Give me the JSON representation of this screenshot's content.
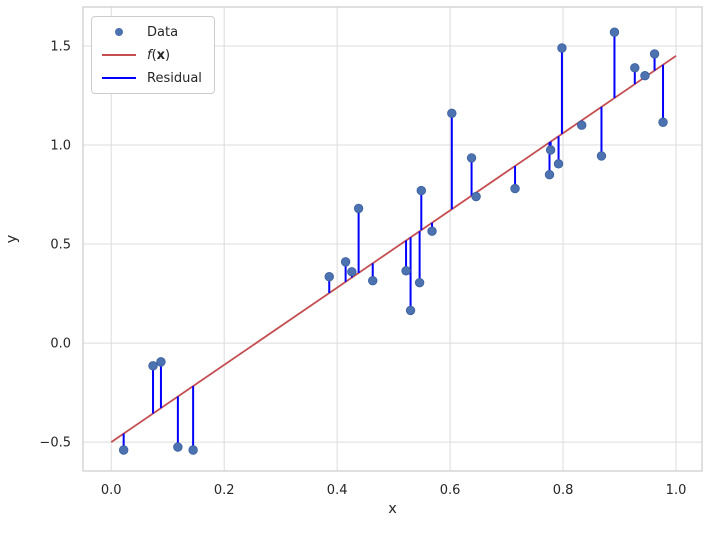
{
  "figure": {
    "background": "#ffffff"
  },
  "chart_data": {
    "type": "scatter",
    "title": "",
    "xlabel": "x",
    "ylabel": "y",
    "xlim": [
      -0.05,
      1.046
    ],
    "ylim": [
      -0.646,
      1.697
    ],
    "grid": true,
    "xticks": {
      "values": [
        0.0,
        0.2,
        0.4,
        0.6,
        0.8,
        1.0
      ],
      "labels": [
        "0.0",
        "0.2",
        "0.4",
        "0.6",
        "0.8",
        "1.0"
      ]
    },
    "yticks": {
      "values": [
        -0.5,
        0.0,
        0.5,
        1.0,
        1.5
      ],
      "labels": [
        "−0.5",
        "0.0",
        "0.5",
        "1.0",
        "1.5"
      ]
    },
    "points": [
      [
        0.022,
        -0.54
      ],
      [
        0.074,
        -0.115
      ],
      [
        0.088,
        -0.095
      ],
      [
        0.118,
        -0.525
      ],
      [
        0.145,
        -0.54
      ],
      [
        0.386,
        0.335
      ],
      [
        0.415,
        0.41
      ],
      [
        0.426,
        0.36
      ],
      [
        0.438,
        0.68
      ],
      [
        0.463,
        0.315
      ],
      [
        0.522,
        0.365
      ],
      [
        0.53,
        0.165
      ],
      [
        0.546,
        0.305
      ],
      [
        0.549,
        0.77
      ],
      [
        0.568,
        0.565
      ],
      [
        0.603,
        1.16
      ],
      [
        0.638,
        0.935
      ],
      [
        0.646,
        0.74
      ],
      [
        0.715,
        0.78
      ],
      [
        0.776,
        0.85
      ],
      [
        0.778,
        0.975
      ],
      [
        0.792,
        0.905
      ],
      [
        0.798,
        1.49
      ],
      [
        0.833,
        1.1
      ],
      [
        0.868,
        0.945
      ],
      [
        0.891,
        1.57
      ],
      [
        0.927,
        1.39
      ],
      [
        0.945,
        1.35
      ],
      [
        0.962,
        1.46
      ],
      [
        0.977,
        1.115
      ]
    ],
    "fit_line": {
      "slope": 1.95,
      "intercept": -0.5,
      "x_range": [
        0.0,
        1.0
      ]
    },
    "residuals": "vertical segments from each data point to the fit line",
    "legend": {
      "position": "upper left",
      "entries": [
        {
          "label": "Data",
          "marker": "point",
          "color": "#4C72B0"
        },
        {
          "label": "f(x)",
          "label_parts": [
            {
              "t": "f",
              "style": "italic"
            },
            {
              "t": "("
            },
            {
              "t": "x",
              "style": "bold"
            },
            {
              "t": ")"
            }
          ],
          "marker": "line",
          "color": "#C44E52"
        },
        {
          "label": "Residual",
          "marker": "line",
          "color": "#0000FF"
        }
      ]
    },
    "colors": {
      "point": "#4C72B0",
      "point_edge": "#3A5FA0",
      "fit_line": "#C44E52",
      "residual": "#0000FF",
      "grid": "#DCDCDC",
      "spine": "#CCCCCC",
      "text": "#262626"
    }
  }
}
